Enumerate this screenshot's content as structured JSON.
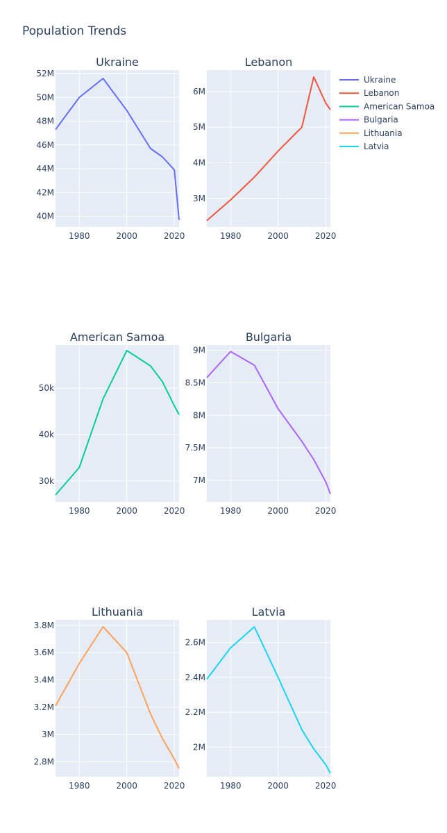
{
  "title": "Population Trends",
  "chart_data": {
    "type": "line",
    "title": "Population Trends",
    "legend": {
      "placement": "right",
      "entries": [
        "Ukraine",
        "Lebanon",
        "American Samoa",
        "Bulgaria",
        "Lithuania",
        "Latvia"
      ]
    },
    "grid": true,
    "subplots": [
      {
        "name": "Ukraine",
        "color": "#636efa",
        "x": [
          1970,
          1980,
          1990,
          2000,
          2010,
          2015,
          2020,
          2022
        ],
        "y": [
          47300000,
          50000000,
          51600000,
          48900000,
          45700000,
          45000000,
          43900000,
          39700000
        ],
        "xlim": [
          1970,
          2022
        ],
        "ylim": [
          39100000,
          52300000
        ],
        "xticks": [
          1980,
          2000,
          2020
        ],
        "xticklabels": [
          "1980",
          "2000",
          "2020"
        ],
        "yticks": [
          40000000,
          42000000,
          44000000,
          46000000,
          48000000,
          50000000,
          52000000
        ],
        "yticklabels": [
          "40M",
          "42M",
          "44M",
          "46M",
          "48M",
          "50M",
          "52M"
        ]
      },
      {
        "name": "Lebanon",
        "color": "#EF553B",
        "x": [
          1970,
          1980,
          1990,
          2000,
          2010,
          2015,
          2020,
          2022
        ],
        "y": [
          2380000,
          2960000,
          3600000,
          4330000,
          5000000,
          6410000,
          5680000,
          5490000
        ],
        "xlim": [
          1970,
          2022
        ],
        "ylim": [
          2200000,
          6600000
        ],
        "xticks": [
          1980,
          2000,
          2020
        ],
        "xticklabels": [
          "1980",
          "2000",
          "2020"
        ],
        "yticks": [
          3000000,
          4000000,
          5000000,
          6000000
        ],
        "yticklabels": [
          "3M",
          "4M",
          "5M",
          "6M"
        ]
      },
      {
        "name": "American Samoa",
        "color": "#00cc96",
        "x": [
          1970,
          1980,
          1990,
          2000,
          2010,
          2015,
          2020,
          2022
        ],
        "y": [
          27000,
          32900,
          47700,
          58100,
          54800,
          51400,
          46200,
          44300
        ],
        "xlim": [
          1970,
          2022
        ],
        "ylim": [
          25500,
          59300
        ],
        "xticks": [
          1980,
          2000,
          2020
        ],
        "xticklabels": [
          "1980",
          "2000",
          "2020"
        ],
        "yticks": [
          30000,
          40000,
          50000
        ],
        "yticklabels": [
          "30k",
          "40k",
          "50k"
        ]
      },
      {
        "name": "Bulgaria",
        "color": "#ab63fa",
        "x": [
          1970,
          1980,
          1990,
          2000,
          2010,
          2015,
          2020,
          2022
        ],
        "y": [
          8580000,
          8980000,
          8770000,
          8100000,
          7600000,
          7320000,
          6980000,
          6790000
        ],
        "xlim": [
          1970,
          2022
        ],
        "ylim": [
          6670000,
          9080000
        ],
        "xticks": [
          1980,
          2000,
          2020
        ],
        "xticklabels": [
          "1980",
          "2000",
          "2020"
        ],
        "yticks": [
          7000000,
          7500000,
          8000000,
          8500000,
          9000000
        ],
        "yticklabels": [
          "7M",
          "7.5M",
          "8M",
          "8.5M",
          "9M"
        ]
      },
      {
        "name": "Lithuania",
        "color": "#FFA15A",
        "x": [
          1970,
          1980,
          1990,
          2000,
          2010,
          2015,
          2020,
          2022
        ],
        "y": [
          3210000,
          3520000,
          3790000,
          3600000,
          3150000,
          2970000,
          2820000,
          2750000
        ],
        "xlim": [
          1970,
          2022
        ],
        "ylim": [
          2690000,
          3840000
        ],
        "xticks": [
          1980,
          2000,
          2020
        ],
        "xticklabels": [
          "1980",
          "2000",
          "2020"
        ],
        "yticks": [
          2800000,
          3000000,
          3200000,
          3400000,
          3600000,
          3800000
        ],
        "yticklabels": [
          "2.8M",
          "3M",
          "3.2M",
          "3.4M",
          "3.6M",
          "3.8M"
        ]
      },
      {
        "name": "Latvia",
        "color": "#19d3f3",
        "x": [
          1970,
          1980,
          1990,
          2000,
          2010,
          2015,
          2020,
          2022
        ],
        "y": [
          2390000,
          2570000,
          2690000,
          2400000,
          2100000,
          1990000,
          1900000,
          1850000
        ],
        "xlim": [
          1970,
          2022
        ],
        "ylim": [
          1830000,
          2730000
        ],
        "xticks": [
          1980,
          2000,
          2020
        ],
        "xticklabels": [
          "1980",
          "2000",
          "2020"
        ],
        "yticks": [
          2000000,
          2200000,
          2400000,
          2600000
        ],
        "yticklabels": [
          "2M",
          "2.2M",
          "2.4M",
          "2.6M"
        ]
      }
    ]
  }
}
